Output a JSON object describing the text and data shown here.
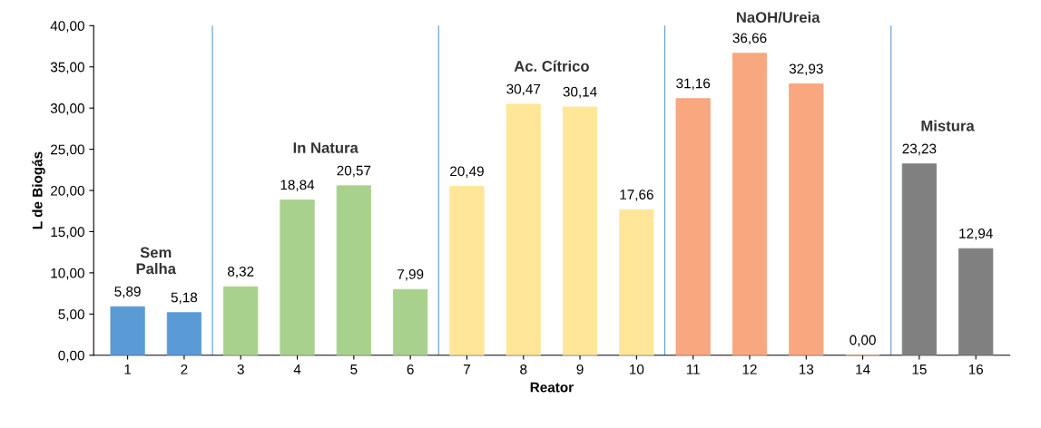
{
  "chart_data": {
    "type": "bar",
    "xlabel": "Reator",
    "ylabel": "L de Biogás",
    "categories": [
      "1",
      "2",
      "3",
      "4",
      "5",
      "6",
      "7",
      "8",
      "9",
      "10",
      "11",
      "12",
      "13",
      "14",
      "15",
      "16"
    ],
    "values": [
      5.89,
      5.18,
      8.32,
      18.84,
      20.57,
      7.99,
      20.49,
      30.47,
      30.14,
      17.66,
      31.16,
      36.66,
      32.93,
      0.0,
      23.23,
      12.94
    ],
    "value_labels": [
      "5,89",
      "5,18",
      "8,32",
      "18,84",
      "20,57",
      "7,99",
      "20,49",
      "30,47",
      "30,14",
      "17,66",
      "31,16",
      "36,66",
      "32,93",
      "0,00",
      "23,23",
      "12,94"
    ],
    "colors": [
      "#5b9bd5",
      "#5b9bd5",
      "#a9d18e",
      "#a9d18e",
      "#a9d18e",
      "#a9d18e",
      "#ffe699",
      "#ffe699",
      "#ffe699",
      "#ffe699",
      "#f8a77e",
      "#f8a77e",
      "#f8a77e",
      "#f8a77e",
      "#808080",
      "#808080"
    ],
    "ylim": [
      0,
      40
    ],
    "yticks": [
      {
        "value": 0,
        "label": "0,00"
      },
      {
        "value": 5,
        "label": "5,00"
      },
      {
        "value": 10,
        "label": "10,00"
      },
      {
        "value": 15,
        "label": "15,00"
      },
      {
        "value": 20,
        "label": "20,00"
      },
      {
        "value": 25,
        "label": "25,00"
      },
      {
        "value": 30,
        "label": "30,00"
      },
      {
        "value": 35,
        "label": "35,00"
      },
      {
        "value": 40,
        "label": "40,00"
      }
    ],
    "annotations": [
      "Sem\nPalha",
      "In Natura",
      "Ac. Cítrico",
      "NaOH/Ureia",
      "Mistura"
    ],
    "grid": false,
    "legend": false
  }
}
